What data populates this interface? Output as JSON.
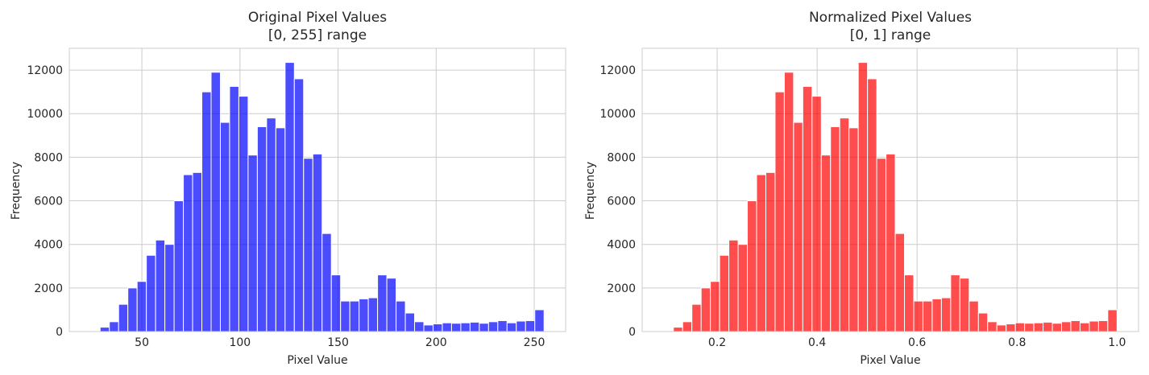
{
  "chart_data": [
    {
      "type": "bar",
      "title": "Original Pixel Values",
      "subtitle": "[0, 255] range",
      "xlabel": "Pixel Value",
      "ylabel": "Frequency",
      "xlim": [
        13,
        266
      ],
      "ylim": [
        0,
        13000
      ],
      "xticks": [
        50,
        100,
        150,
        200,
        250
      ],
      "yticks": [
        0,
        2000,
        4000,
        6000,
        8000,
        10000,
        12000
      ],
      "grid": true,
      "color": "#0000ff",
      "bin_range": [
        24,
        255
      ],
      "values": [
        30,
        200,
        450,
        1250,
        2000,
        2300,
        3500,
        4200,
        4000,
        6000,
        7200,
        7300,
        11000,
        11900,
        9600,
        11250,
        10800,
        8100,
        9400,
        9800,
        9350,
        12350,
        11600,
        7950,
        8150,
        4500,
        2600,
        1400,
        1400,
        1500,
        1550,
        2600,
        2450,
        1400,
        850,
        450,
        300,
        350,
        400,
        380,
        400,
        430,
        380,
        450,
        500,
        400,
        480,
        500,
        1000
      ]
    },
    {
      "type": "bar",
      "title": "Normalized Pixel Values",
      "subtitle": "[0, 1] range",
      "xlabel": "Pixel Value",
      "ylabel": "Frequency",
      "xlim": [
        0.05,
        1.043
      ],
      "ylim": [
        0,
        13000
      ],
      "xticks": [
        0.2,
        0.4,
        0.6,
        0.8,
        1.0
      ],
      "yticks": [
        0,
        2000,
        4000,
        6000,
        8000,
        10000,
        12000
      ],
      "grid": true,
      "color": "#ff0000",
      "bin_range": [
        0.094,
        1.0
      ],
      "values": [
        30,
        200,
        450,
        1250,
        2000,
        2300,
        3500,
        4200,
        4000,
        6000,
        7200,
        7300,
        11000,
        11900,
        9600,
        11250,
        10800,
        8100,
        9400,
        9800,
        9350,
        12350,
        11600,
        7950,
        8150,
        4500,
        2600,
        1400,
        1400,
        1500,
        1550,
        2600,
        2450,
        1400,
        850,
        450,
        300,
        350,
        400,
        380,
        400,
        430,
        380,
        450,
        500,
        400,
        480,
        500,
        1000
      ]
    }
  ],
  "panels": [
    {
      "title": "Original Pixel Values",
      "subtitle": "[0, 255] range",
      "xlabel": "Pixel Value",
      "ylabel": "Frequency"
    },
    {
      "title": "Normalized Pixel Values",
      "subtitle": "[0, 1] range",
      "xlabel": "Pixel Value",
      "ylabel": "Frequency"
    }
  ]
}
